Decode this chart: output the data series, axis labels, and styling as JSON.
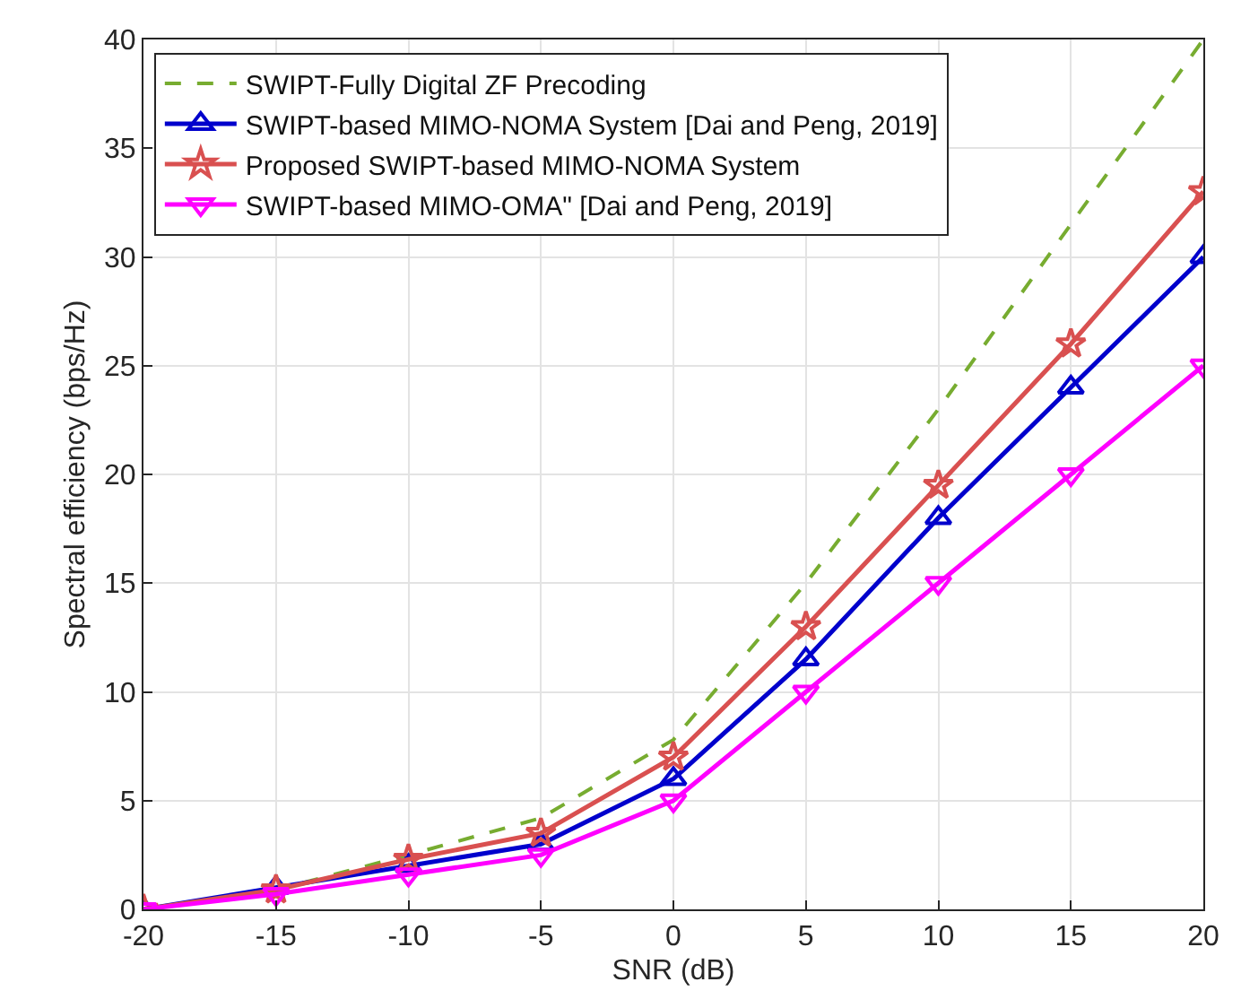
{
  "chart_data": {
    "type": "line",
    "xlabel": "SNR (dB)",
    "ylabel": "Spectral efficiency (bps/Hz)",
    "x": [
      -20,
      -15,
      -10,
      -5,
      0,
      5,
      10,
      15,
      20
    ],
    "series": [
      {
        "name": "SWIPT-Fully Digital ZF Precoding",
        "color": "#77ac30",
        "line_style": "dashed",
        "marker": "none",
        "values": [
          0,
          0.9,
          2.5,
          4.2,
          7.8,
          15,
          23,
          31.5,
          40
        ]
      },
      {
        "name": "SWIPT-based MIMO-NOMA System [Dai and Peng, 2019]",
        "color": "#0000cc",
        "line_style": "solid",
        "marker": "triangle",
        "values": [
          0,
          1.0,
          2.0,
          3.0,
          6,
          11.5,
          18,
          24,
          30
        ]
      },
      {
        "name": "Proposed SWIPT-based MIMO-NOMA System",
        "color": "#d95050",
        "line_style": "solid",
        "marker": "star",
        "values": [
          0,
          0.9,
          2.3,
          3.5,
          7,
          13,
          19.5,
          26,
          33
        ]
      },
      {
        "name": "SWIPT-based MIMO-OMA\" [Dai and Peng, 2019]",
        "color": "#ff00ff",
        "line_style": "solid",
        "marker": "triangle-down",
        "values": [
          0,
          0.7,
          1.6,
          2.5,
          5,
          10,
          15,
          20,
          25
        ]
      }
    ],
    "xlim": [
      -20,
      20
    ],
    "xticks": [
      -20,
      -15,
      -10,
      -5,
      0,
      5,
      10,
      15,
      20
    ],
    "ylim": [
      0,
      40
    ],
    "yticks": [
      0,
      5,
      10,
      15,
      20,
      25,
      30,
      35,
      40
    ],
    "grid": true,
    "legend": "top left"
  }
}
